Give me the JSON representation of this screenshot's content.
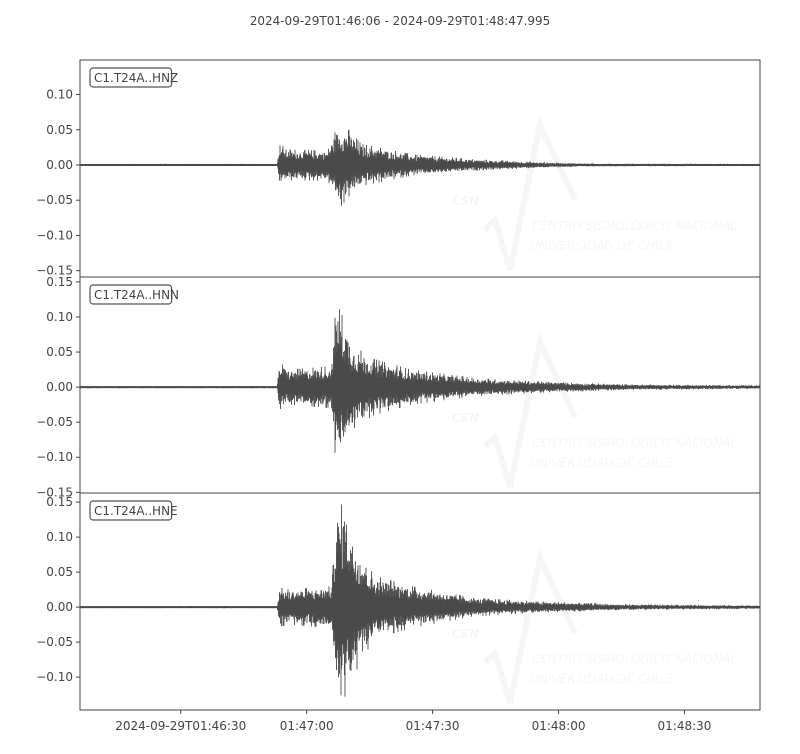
{
  "chart_data": {
    "type": "line",
    "title": "2024-09-29T01:46:06  -  2024-09-29T01:48:47.995",
    "start_time": "2024-09-29T01:46:06",
    "end_time": "2024-09-29T01:48:47.995",
    "xlim": [
      "01:46:06",
      "01:48:47.995"
    ],
    "x_ticks": [
      {
        "time": "01:46:30",
        "label": "2024-09-29T01:46:30"
      },
      {
        "time": "01:47:00",
        "label": "01:47:00"
      },
      {
        "time": "01:47:30",
        "label": "01:47:30"
      },
      {
        "time": "01:48:00",
        "label": "01:48:00"
      },
      {
        "time": "01:48:30",
        "label": "01:48:30"
      }
    ],
    "grid": false,
    "line_color": "#4a4a4a",
    "watermark": {
      "logo": "CSN",
      "line1": "CENTRO SISMOLÓGICO NACIONAL",
      "line2": "UNIVERSIDAD DE CHILE"
    },
    "series": [
      {
        "name": "C1.T24A..HNZ",
        "ylim": [
          -0.159,
          0.149
        ],
        "y_ticks": [
          0.1,
          0.05,
          0.0,
          -0.05,
          -0.1,
          -0.15
        ],
        "y_tick_labels": [
          "0.10",
          "0.05",
          "0.00",
          "−0.05",
          "−0.10",
          "−0.15"
        ],
        "envelope_upper": [
          [
            "01:46:06",
            0.0015
          ],
          [
            "01:46:53",
            0.0015
          ],
          [
            "01:46:53.5",
            0.034
          ],
          [
            "01:46:55",
            0.022
          ],
          [
            "01:47:05",
            0.02
          ],
          [
            "01:47:07",
            0.05
          ],
          [
            "01:47:10",
            0.05
          ],
          [
            "01:47:13",
            0.03
          ],
          [
            "01:47:25",
            0.015
          ],
          [
            "01:47:40",
            0.008
          ],
          [
            "01:47:55",
            0.004
          ],
          [
            "01:48:10",
            0.002
          ],
          [
            "01:48:47.995",
            0.0015
          ]
        ],
        "envelope_lower": [
          [
            "01:46:06",
            -0.0015
          ],
          [
            "01:46:53",
            -0.0015
          ],
          [
            "01:46:53.5",
            -0.028
          ],
          [
            "01:46:55",
            -0.022
          ],
          [
            "01:47:05",
            -0.022
          ],
          [
            "01:47:07",
            -0.045
          ],
          [
            "01:47:08",
            -0.06
          ],
          [
            "01:47:10",
            -0.045
          ],
          [
            "01:47:13",
            -0.03
          ],
          [
            "01:47:25",
            -0.015
          ],
          [
            "01:47:40",
            -0.008
          ],
          [
            "01:47:55",
            -0.004
          ],
          [
            "01:48:10",
            -0.002
          ],
          [
            "01:48:47.995",
            -0.0015
          ]
        ]
      },
      {
        "name": "C1.T24A..HNN",
        "ylim": [
          -0.151,
          0.157
        ],
        "y_ticks": [
          0.15,
          0.1,
          0.05,
          0.0,
          -0.05,
          -0.1,
          -0.15
        ],
        "y_tick_labels": [
          "0.15",
          "0.10",
          "0.05",
          "0.00",
          "−0.05",
          "−0.10",
          "−0.15"
        ],
        "envelope_upper": [
          [
            "01:46:06",
            0.0015
          ],
          [
            "01:46:53",
            0.0015
          ],
          [
            "01:46:53.5",
            0.035
          ],
          [
            "01:46:56",
            0.025
          ],
          [
            "01:47:06",
            0.03
          ],
          [
            "01:47:07",
            0.122
          ],
          [
            "01:47:09",
            0.095
          ],
          [
            "01:47:11",
            0.06
          ],
          [
            "01:47:16",
            0.04
          ],
          [
            "01:47:25",
            0.025
          ],
          [
            "01:47:40",
            0.013
          ],
          [
            "01:47:55",
            0.008
          ],
          [
            "01:48:15",
            0.004
          ],
          [
            "01:48:47.995",
            0.0025
          ]
        ],
        "envelope_lower": [
          [
            "01:46:06",
            -0.0015
          ],
          [
            "01:46:53",
            -0.0015
          ],
          [
            "01:46:53.5",
            -0.032
          ],
          [
            "01:46:56",
            -0.025
          ],
          [
            "01:47:06",
            -0.03
          ],
          [
            "01:47:07",
            -0.115
          ],
          [
            "01:47:09",
            -0.08
          ],
          [
            "01:47:11",
            -0.06
          ],
          [
            "01:47:16",
            -0.04
          ],
          [
            "01:47:25",
            -0.025
          ],
          [
            "01:47:40",
            -0.013
          ],
          [
            "01:47:55",
            -0.008
          ],
          [
            "01:48:15",
            -0.004
          ],
          [
            "01:48:47.995",
            -0.0025
          ]
        ]
      },
      {
        "name": "C1.T24A..HNE",
        "ylim": [
          -0.147,
          0.163
        ],
        "y_ticks": [
          0.15,
          0.1,
          0.05,
          0.0,
          -0.05,
          -0.1
        ],
        "y_tick_labels": [
          "0.15",
          "0.10",
          "0.05",
          "0.00",
          "−0.05",
          "−0.10"
        ],
        "envelope_upper": [
          [
            "01:46:06",
            0.0015
          ],
          [
            "01:46:53",
            0.0015
          ],
          [
            "01:46:53.5",
            0.028
          ],
          [
            "01:46:56",
            0.025
          ],
          [
            "01:47:06",
            0.03
          ],
          [
            "01:47:07",
            0.14
          ],
          [
            "01:47:09",
            0.15
          ],
          [
            "01:47:11",
            0.1
          ],
          [
            "01:47:16",
            0.045
          ],
          [
            "01:47:25",
            0.03
          ],
          [
            "01:47:40",
            0.013
          ],
          [
            "01:47:55",
            0.008
          ],
          [
            "01:48:15",
            0.004
          ],
          [
            "01:48:47.995",
            0.0025
          ]
        ],
        "envelope_lower": [
          [
            "01:46:06",
            -0.0015
          ],
          [
            "01:46:53",
            -0.0015
          ],
          [
            "01:46:53.5",
            -0.028
          ],
          [
            "01:46:56",
            -0.025
          ],
          [
            "01:47:06",
            -0.03
          ],
          [
            "01:47:07",
            -0.12
          ],
          [
            "01:47:09",
            -0.13
          ],
          [
            "01:47:11",
            -0.1
          ],
          [
            "01:47:16",
            -0.045
          ],
          [
            "01:47:25",
            -0.03
          ],
          [
            "01:47:40",
            -0.013
          ],
          [
            "01:47:55",
            -0.008
          ],
          [
            "01:48:15",
            -0.004
          ],
          [
            "01:48:47.995",
            -0.0025
          ]
        ]
      }
    ]
  }
}
